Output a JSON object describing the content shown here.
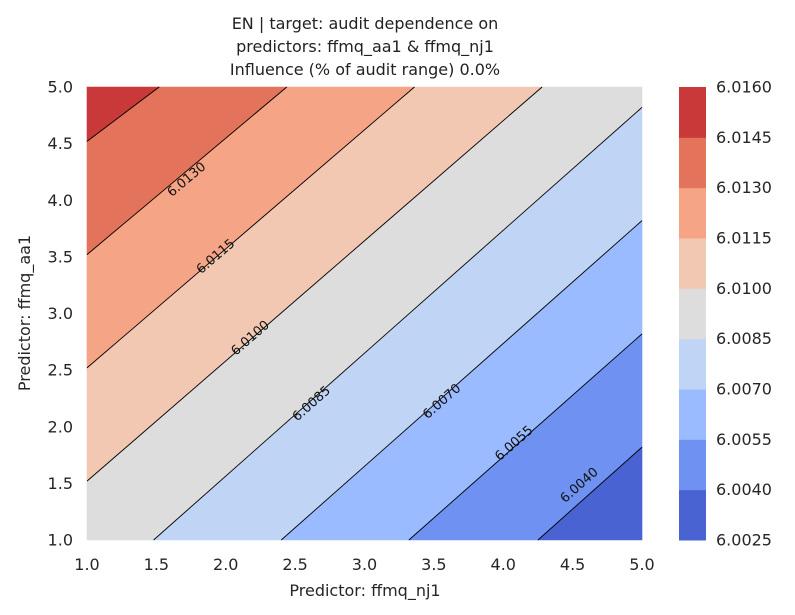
{
  "chart_data": {
    "type": "contour",
    "title_lines": [
      "EN | target: audit dependence on",
      "predictors: ffmq_aa1 & ffmq_nj1",
      "Influence (% of audit range) 0.0%"
    ],
    "xlabel": "Predictor: ffmq_nj1",
    "ylabel": "Predictor: ffmq_aa1",
    "xlim": [
      1.0,
      5.0
    ],
    "ylim": [
      1.0,
      5.0
    ],
    "xticks": [
      "1.0",
      "1.5",
      "2.0",
      "2.5",
      "3.0",
      "3.5",
      "4.0",
      "4.5",
      "5.0"
    ],
    "yticks": [
      "1.0",
      "1.5",
      "2.0",
      "2.5",
      "3.0",
      "3.5",
      "4.0",
      "4.5",
      "5.0"
    ],
    "grid": false,
    "levels": [
      6.0025,
      6.004,
      6.0055,
      6.007,
      6.0085,
      6.01,
      6.0115,
      6.013,
      6.0145,
      6.016
    ],
    "colorbar_ticks": [
      "6.0025",
      "6.0040",
      "6.0055",
      "6.0070",
      "6.0085",
      "6.0100",
      "6.0115",
      "6.0130",
      "6.0145",
      "6.0160"
    ],
    "band_colors": [
      "#4a63d3",
      "#6f92f2",
      "#9abbff",
      "#c0d4f5",
      "#dddddd",
      "#f2c8b3",
      "#f5a585",
      "#e4735b",
      "#c9393a"
    ],
    "contour_lines": [
      {
        "label": "6.0040",
        "points": [
          [
            4.25,
            1.0
          ],
          [
            5.0,
            1.82
          ]
        ],
        "label_at": [
          4.55,
          1.48
        ]
      },
      {
        "label": "6.0055",
        "points": [
          [
            3.32,
            1.0
          ],
          [
            5.0,
            2.82
          ]
        ],
        "label_at": [
          4.08,
          1.85
        ]
      },
      {
        "label": "6.0070",
        "points": [
          [
            2.4,
            1.0
          ],
          [
            5.0,
            3.82
          ]
        ],
        "label_at": [
          3.56,
          2.22
        ]
      },
      {
        "label": "6.0085",
        "points": [
          [
            1.48,
            1.0
          ],
          [
            5.0,
            4.82
          ]
        ],
        "label_at": [
          2.62,
          2.2
        ]
      },
      {
        "label": "6.0100",
        "points": [
          [
            1.0,
            1.52
          ],
          [
            4.28,
            5.0
          ]
        ],
        "label_at": [
          2.18,
          2.78
        ]
      },
      {
        "label": "6.0115",
        "points": [
          [
            1.0,
            2.52
          ],
          [
            3.36,
            5.0
          ]
        ],
        "label_at": [
          1.93,
          3.5
        ]
      },
      {
        "label": "6.0130",
        "points": [
          [
            1.0,
            3.52
          ],
          [
            2.44,
            5.0
          ]
        ],
        "label_at": [
          1.72,
          4.18
        ]
      },
      {
        "label": "",
        "points": [
          [
            1.0,
            4.52
          ],
          [
            1.52,
            5.0
          ]
        ],
        "label_at": null
      }
    ]
  }
}
